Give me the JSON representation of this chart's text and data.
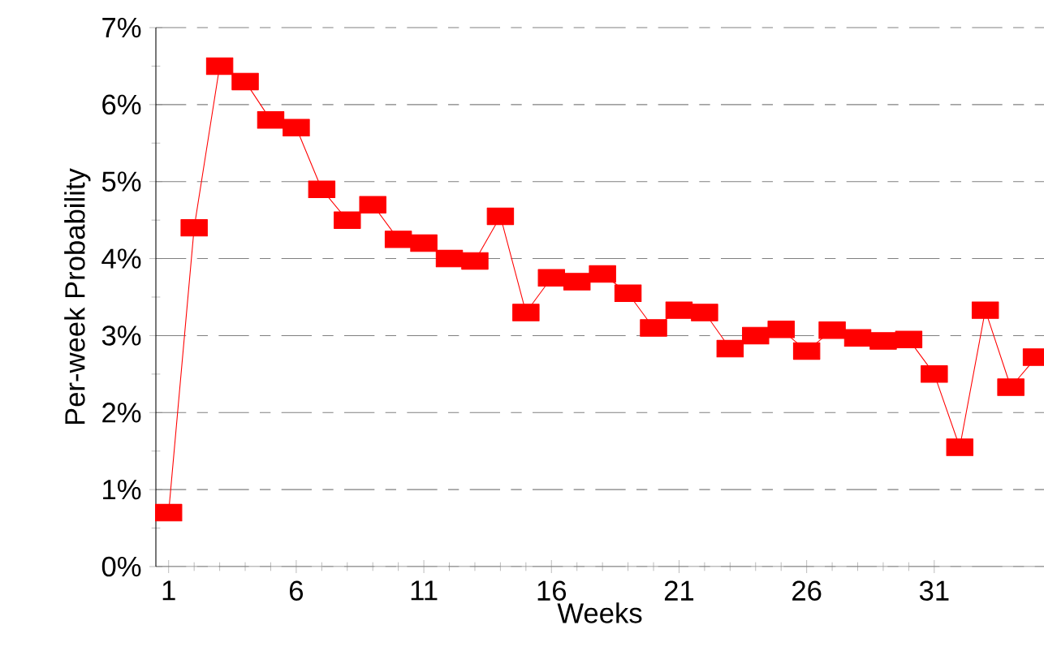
{
  "chart_data": {
    "type": "line",
    "xlabel": "Weeks",
    "ylabel": "Per-week Probability",
    "x": [
      1,
      2,
      3,
      4,
      5,
      6,
      7,
      8,
      9,
      10,
      11,
      12,
      13,
      14,
      15,
      16,
      17,
      18,
      19,
      20,
      21,
      22,
      23,
      24,
      25,
      26,
      27,
      28,
      29,
      30,
      31,
      32,
      33,
      34,
      35
    ],
    "series": [
      {
        "color": "#ff0000",
        "values": [
          0.7,
          4.4,
          6.5,
          6.3,
          5.8,
          5.7,
          4.9,
          4.5,
          4.7,
          4.25,
          4.2,
          4.0,
          3.97,
          4.55,
          3.3,
          3.75,
          3.7,
          3.8,
          3.55,
          3.1,
          3.33,
          3.3,
          2.83,
          3.0,
          3.08,
          2.8,
          3.07,
          2.97,
          2.93,
          2.95,
          2.5,
          1.55,
          3.33,
          2.33,
          2.72
        ]
      }
    ],
    "xlim": [
      0.5,
      35.3
    ],
    "ylim": [
      0,
      7
    ],
    "xticks": [
      1,
      6,
      11,
      16,
      21,
      26,
      31
    ],
    "yticks": [
      {
        "value": 0,
        "label": "0%"
      },
      {
        "value": 1,
        "label": "1%"
      },
      {
        "value": 2,
        "label": "2%"
      },
      {
        "value": 3,
        "label": "3%"
      },
      {
        "value": 4,
        "label": "4%"
      },
      {
        "value": 5,
        "label": "5%"
      },
      {
        "value": 6,
        "label": "6%"
      },
      {
        "value": 7,
        "label": "7%"
      }
    ],
    "grid": "y",
    "marker": "square",
    "line_style": "solid"
  }
}
